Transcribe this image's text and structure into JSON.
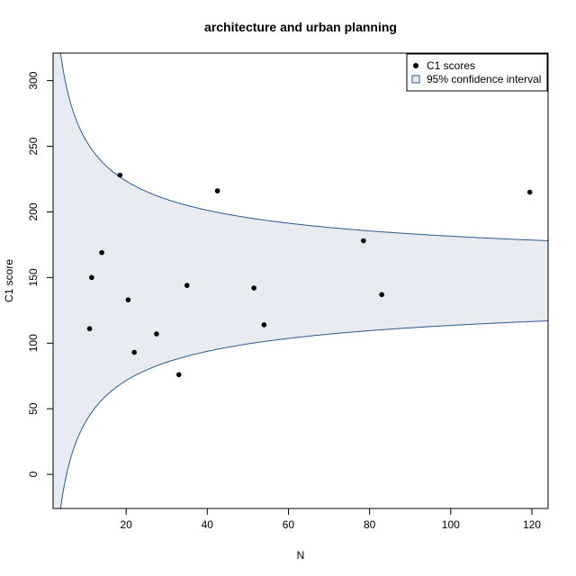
{
  "chart_data": {
    "type": "scatter",
    "title": "architecture and urban planning",
    "xlabel": "N",
    "ylabel": "C1 score",
    "xlim": [
      2,
      124
    ],
    "ylim": [
      -26,
      321
    ],
    "x_ticks": [
      20,
      40,
      60,
      80,
      100,
      120
    ],
    "y_ticks": [
      0,
      50,
      100,
      150,
      200,
      250,
      300
    ],
    "grid": false,
    "legend": {
      "position": "top-right",
      "entries": [
        {
          "label": "C1 scores",
          "marker": "filled-circle",
          "color": "#000000"
        },
        {
          "label": "95% confidence interval",
          "marker": "square",
          "color": "#2b5a8a"
        }
      ]
    },
    "confidence_band": {
      "center": 147.5,
      "coefficient": 340,
      "fill_color": "#e8ecf2",
      "line_color": "#2b5a8a"
    },
    "series": [
      {
        "name": "C1 scores",
        "color": "#000000",
        "points": [
          {
            "x": 11,
            "y": 111
          },
          {
            "x": 11.5,
            "y": 150
          },
          {
            "x": 14,
            "y": 169
          },
          {
            "x": 18.5,
            "y": 228
          },
          {
            "x": 20.5,
            "y": 133
          },
          {
            "x": 22,
            "y": 93
          },
          {
            "x": 27.5,
            "y": 107
          },
          {
            "x": 33,
            "y": 76
          },
          {
            "x": 35,
            "y": 144
          },
          {
            "x": 42.5,
            "y": 216
          },
          {
            "x": 51.5,
            "y": 142
          },
          {
            "x": 54,
            "y": 114
          },
          {
            "x": 78.5,
            "y": 178
          },
          {
            "x": 83,
            "y": 137
          },
          {
            "x": 119.5,
            "y": 215
          }
        ]
      }
    ]
  }
}
